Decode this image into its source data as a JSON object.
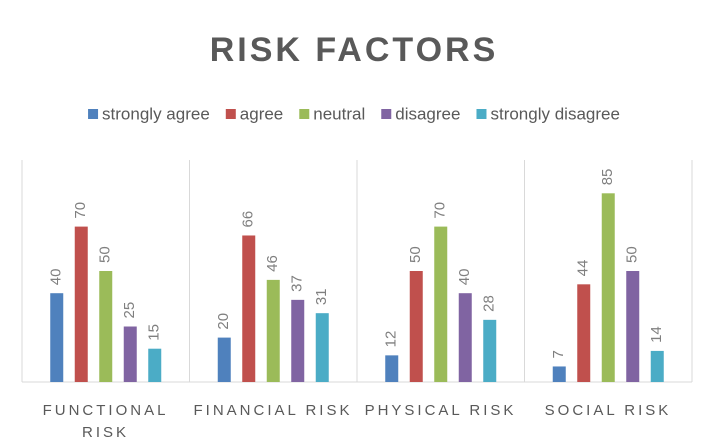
{
  "chart_data": {
    "type": "bar",
    "title": "RISK FACTORS",
    "categories": [
      "FUNCTIONAL RISK",
      "FINANCIAL RISK",
      "PHYSICAL RISK",
      "SOCIAL RISK"
    ],
    "series": [
      {
        "name": "strongly agree",
        "color": "#4f81bd",
        "values": [
          40,
          20,
          12,
          7
        ]
      },
      {
        "name": "agree",
        "color": "#c0504d",
        "values": [
          70,
          66,
          50,
          44
        ]
      },
      {
        "name": "neutral",
        "color": "#9bbb59",
        "values": [
          50,
          46,
          70,
          85
        ]
      },
      {
        "name": "disagree",
        "color": "#8064a2",
        "values": [
          25,
          37,
          40,
          50
        ]
      },
      {
        "name": "strongly disagree",
        "color": "#4bacc6",
        "values": [
          15,
          31,
          28,
          14
        ]
      }
    ],
    "ylim": [
      0,
      100
    ],
    "legend": "top"
  }
}
